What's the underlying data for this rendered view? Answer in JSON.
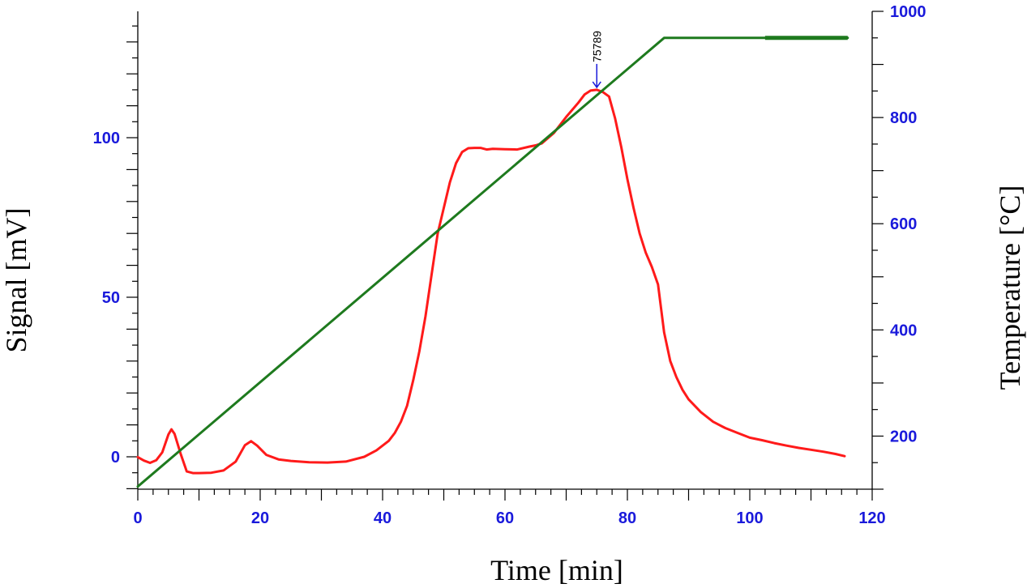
{
  "chart_data": {
    "type": "line",
    "xlabel": "Time [min]",
    "ylabel_left": "Signal [mV]",
    "ylabel_right": "Temperature [°C]",
    "xlim": [
      0,
      120
    ],
    "ylim_left": [
      -10,
      140
    ],
    "ylim_right": [
      100,
      1000
    ],
    "x_ticks": [
      0,
      20,
      40,
      60,
      80,
      100,
      120
    ],
    "y_left_ticks": [
      0,
      50,
      100
    ],
    "y_right_ticks": [
      200,
      400,
      600,
      800,
      1000
    ],
    "grid": false,
    "colors": {
      "signal": "#ff1a1a",
      "temperature": "#1e7a1e",
      "ticks": "#1a1adb",
      "peak_marker": "#1a1adb"
    },
    "peak_annotation": {
      "x": 75,
      "y": 115,
      "label": "75789"
    },
    "series": [
      {
        "axis": "left",
        "x": [
          0,
          1,
          2,
          3,
          4,
          5,
          5.5,
          6,
          7,
          8,
          9,
          10,
          12,
          14,
          16,
          17.5,
          18.5,
          19.5,
          21,
          23,
          25,
          28,
          31,
          34,
          37,
          39,
          41,
          42,
          43,
          44,
          45,
          46,
          47,
          48,
          49,
          50,
          51,
          52,
          53,
          54,
          55,
          56,
          57,
          58,
          60,
          62,
          64,
          65,
          66,
          68,
          70,
          72,
          73,
          74,
          75,
          76,
          77,
          78,
          79,
          80,
          81,
          82,
          83,
          84,
          85,
          86,
          87,
          88,
          89,
          90,
          92,
          94,
          96,
          98,
          100,
          102,
          104,
          106,
          108,
          110,
          112,
          114,
          115.5
        ],
        "y": [
          -0.1,
          -1.2,
          -1.9,
          -1.1,
          1.4,
          7,
          8.6,
          7.2,
          1,
          -4.6,
          -5.1,
          -5.1,
          -5,
          -4.3,
          -1.5,
          3.6,
          4.9,
          3.5,
          0.6,
          -0.8,
          -1.3,
          -1.7,
          -1.8,
          -1.5,
          0,
          2,
          5,
          7.5,
          11,
          16,
          24,
          33,
          44,
          57,
          70,
          78,
          86,
          92,
          95.5,
          96.7,
          96.8,
          96.8,
          96.3,
          96.5,
          96.4,
          96.3,
          97.2,
          97.6,
          98.2,
          101.5,
          106.5,
          111,
          113.5,
          114.8,
          115,
          114.3,
          112.9,
          106,
          97,
          87,
          78,
          70,
          64,
          59.5,
          54,
          39,
          30,
          25,
          21,
          18,
          14,
          11,
          9,
          7.5,
          6,
          5.2,
          4.3,
          3.5,
          2.8,
          2.2,
          1.6,
          0.9,
          0.2
        ]
      },
      {
        "axis": "right",
        "x": [
          0,
          86,
          116
        ],
        "y": [
          105,
          950,
          950
        ]
      }
    ]
  }
}
